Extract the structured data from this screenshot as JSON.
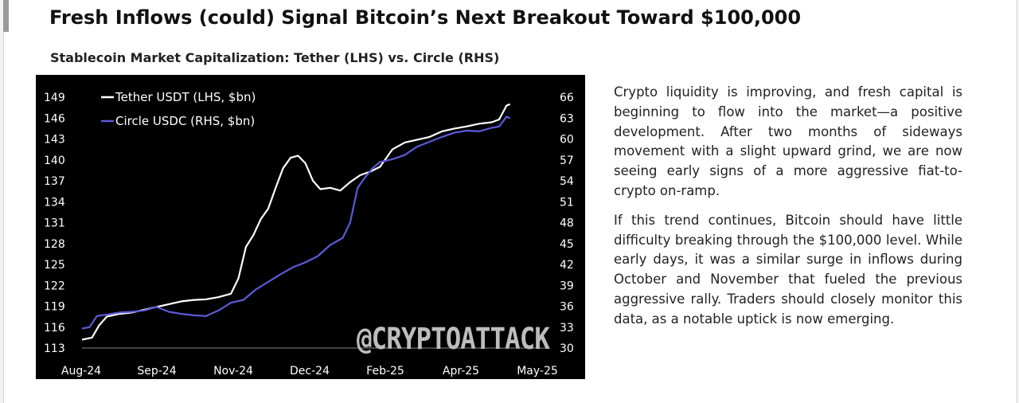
{
  "header": {
    "title": "Fresh Inflows (could) Signal Bitcoin’s Next Breakout Toward $100,000",
    "subtitle": "Stablecoin Market Capitalization: Tether (LHS) vs. Circle (RHS)"
  },
  "commentary": {
    "p1": "Crypto liquidity is improving, and fresh capital is beginning to flow into the market—a positive development. After two months of sideways movement with a slight upward grind, we are now seeing early signs of a more aggressive fiat-to-crypto on-ramp.",
    "p2": "If this trend continues, Bitcoin should have little difficulty breaking through the $100,000 level. While early days, it was a similar surge in inflows during October and November that fueled the previous aggressive rally. Traders should closely monitor this data, as a notable uptick is now emerging."
  },
  "watermark": "@CRYPTOATTACK",
  "colors": {
    "background": "#000000",
    "tether": "#ffffff",
    "circle": "#5b5bd6",
    "axis_text": "#ffffff",
    "watermark": "#bdbdbd"
  },
  "chart_data": {
    "type": "line",
    "title": "Stablecoin Market Capitalization: Tether (LHS) vs. Circle (RHS)",
    "xlabel": "",
    "ylabel_left": "Tether USDT ($bn)",
    "ylabel_right": "Circle USDC ($bn)",
    "left_ylim": [
      113,
      149
    ],
    "right_ylim": [
      30,
      66
    ],
    "left_ticks": [
      "149",
      "146",
      "143",
      "140",
      "137",
      "134",
      "131",
      "128",
      "125",
      "122",
      "119",
      "116",
      "113"
    ],
    "right_ticks": [
      "66",
      "63",
      "60",
      "57",
      "54",
      "51",
      "48",
      "45",
      "42",
      "39",
      "36",
      "33",
      "30"
    ],
    "x_ticks": [
      "Aug-24",
      "Sep-24",
      "Nov-24",
      "Dec-24",
      "Feb-25",
      "Apr-25",
      "May-25"
    ],
    "x_range": [
      0,
      9.33
    ],
    "legend": {
      "position": "top-left",
      "entries": [
        "Tether USDT (LHS, $bn)",
        "Circle USDC (RHS, $bn)"
      ]
    },
    "series": [
      {
        "name": "Tether USDT (LHS, $bn)",
        "axis": "left",
        "x": [
          0,
          0.2,
          0.35,
          0.5,
          0.75,
          1.0,
          1.25,
          1.5,
          1.75,
          2.0,
          2.25,
          2.5,
          2.75,
          3.0,
          3.15,
          3.3,
          3.45,
          3.6,
          3.75,
          3.9,
          4.05,
          4.2,
          4.35,
          4.5,
          4.65,
          4.8,
          5.0,
          5.2,
          5.4,
          5.6,
          5.8,
          6.0,
          6.25,
          6.5,
          6.75,
          7.0,
          7.25,
          7.5,
          7.75,
          8.0,
          8.25,
          8.4,
          8.55,
          8.62
        ],
        "values": [
          114.2,
          114.5,
          116.3,
          117.5,
          117.9,
          118.1,
          118.5,
          118.9,
          119.3,
          119.7,
          119.9,
          120.0,
          120.3,
          120.8,
          123.0,
          127.5,
          129.2,
          131.5,
          133.0,
          136.0,
          138.8,
          140.3,
          140.6,
          139.5,
          137.0,
          135.8,
          136.0,
          135.6,
          136.8,
          137.8,
          138.3,
          139.0,
          141.5,
          142.5,
          142.9,
          143.3,
          144.1,
          144.5,
          144.8,
          145.2,
          145.4,
          145.8,
          147.8,
          148.0
        ]
      },
      {
        "name": "Circle USDC (RHS, $bn)",
        "axis": "right",
        "x": [
          0,
          0.15,
          0.3,
          0.5,
          0.75,
          1.0,
          1.25,
          1.5,
          1.75,
          2.0,
          2.25,
          2.5,
          2.75,
          3.0,
          3.25,
          3.5,
          3.75,
          4.0,
          4.25,
          4.5,
          4.75,
          5.0,
          5.25,
          5.4,
          5.55,
          5.7,
          5.85,
          6.0,
          6.25,
          6.5,
          6.75,
          7.0,
          7.25,
          7.5,
          7.75,
          8.0,
          8.25,
          8.4,
          8.55,
          8.62
        ],
        "values": [
          32.8,
          33.0,
          34.6,
          34.8,
          35.1,
          35.2,
          35.4,
          35.9,
          35.2,
          34.9,
          34.7,
          34.6,
          35.4,
          36.5,
          36.9,
          38.4,
          39.5,
          40.6,
          41.6,
          42.3,
          43.2,
          44.8,
          45.8,
          48.0,
          53.0,
          54.5,
          55.8,
          56.7,
          57.1,
          57.7,
          58.9,
          59.6,
          60.3,
          60.9,
          61.2,
          61.1,
          61.6,
          61.8,
          63.2,
          63.0
        ]
      }
    ]
  }
}
